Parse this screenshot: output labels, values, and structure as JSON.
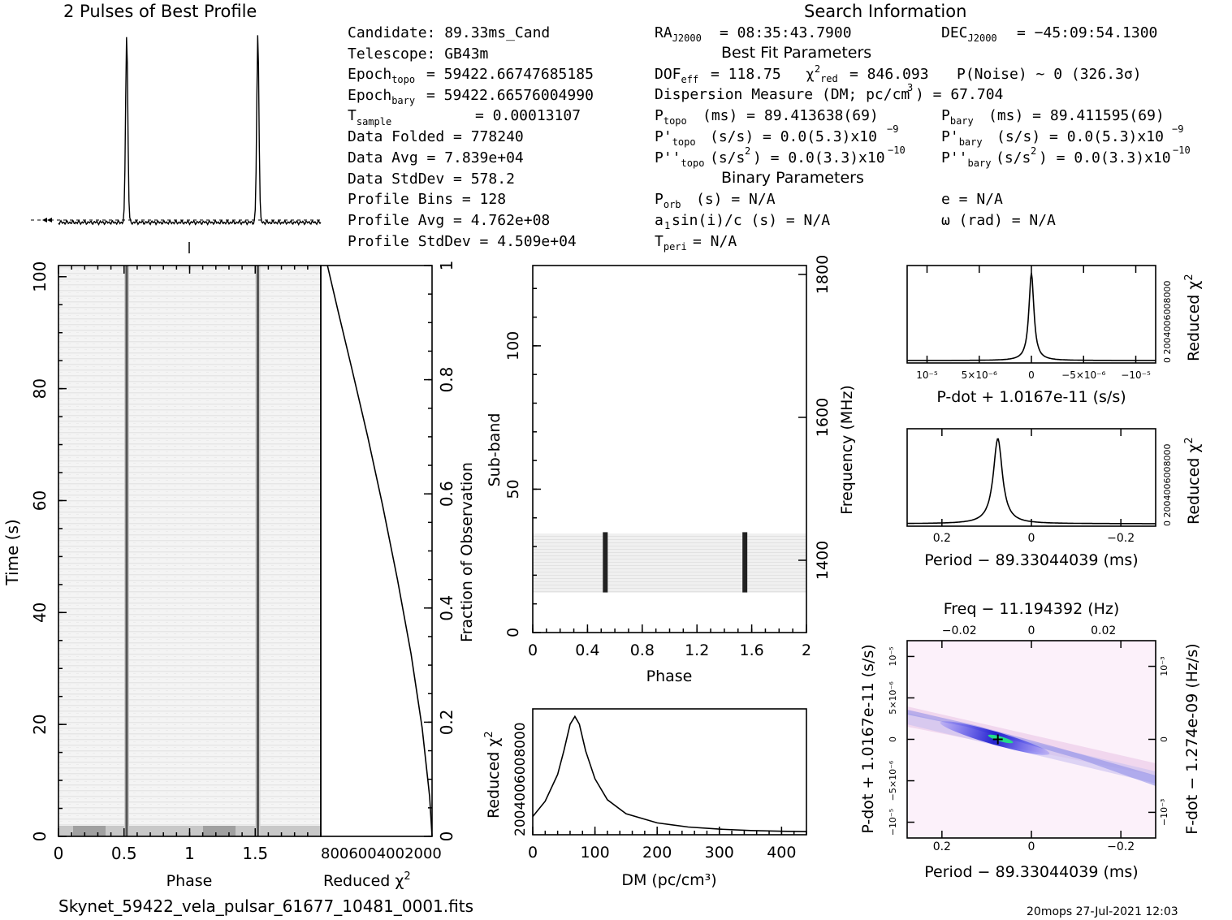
{
  "title": "2 Pulses of Best Profile",
  "search_header": "Search Information",
  "best_fit_header": "Best Fit Parameters",
  "binary_header": "Binary Parameters",
  "file_name": "Skynet_59422_vela_pulsar_61677_10481_0001.fits",
  "footer_stamp": "20mops 27-Jul-2021 12:03",
  "info": {
    "candidate": "Candidate:  89.33ms_Cand",
    "telescope": "Telescope:  GB43m",
    "epoch_topo": "= 59422.66747685185",
    "epoch_bary": "= 59422.66576004990",
    "t_sample": "=   0.00013107",
    "data_folded": "Data Folded    =   778240",
    "data_avg": "Data Avg       =   7.839e+04",
    "data_stddev": "Data StdDev    =   578.2",
    "profile_bins": "Profile Bins   =   128",
    "profile_avg": "Profile Avg    =   4.762e+08",
    "profile_stddev": "Profile StdDev =   4.509e+04",
    "ra": "= 08:35:43.7900",
    "dec": "= −45:09:54.1300",
    "dof": "= 118.75",
    "chi2": "= 846.093",
    "pnoise": "P(Noise) ~ 0    (326.3σ)",
    "dm_text": "Dispersion Measure (DM; pc/cm",
    "dm_value": ") = 67.704",
    "p_topo": "(ms) =  89.413638(69)",
    "p_bary": "(ms) =  89.411595(69)",
    "pd_topo": "(s/s) = 0.0(5.3)x10",
    "pd_topo_exp": "−9",
    "pd_bary": "(s/s) = 0.0(5.3)x10",
    "pd_bary_exp": "−9",
    "pdd_topo": "(s/s",
    "pdd_topo_tail": ") = 0.0(3.3)x10",
    "pdd_topo_exp": "−10",
    "pdd_bary": "(s/s",
    "pdd_bary_tail": ") = 0.0(3.3)x10",
    "pdd_bary_exp": "−10",
    "p_orb": "(s) = N/A",
    "a1sini": "a",
    "a1sini_tail": "sin(i)/c (s) = N/A",
    "t_peri": "= N/A",
    "ecc": "e = N/A",
    "omega": "ω (rad) = N/A"
  },
  "chart_data": [
    {
      "type": "line",
      "name": "profile",
      "title": "2 Pulses of Best Profile",
      "xlim": [
        0,
        2
      ],
      "pulse_phase": [
        0.52,
        1.52
      ],
      "pulse_relative_height": 1.0,
      "baseline_relative_height": 0.0
    },
    {
      "type": "heatmap",
      "name": "time-phase",
      "xlabel": "Phase",
      "ylabel": "Time (s)",
      "xlim": [
        0,
        2
      ],
      "ylim": [
        0,
        102
      ],
      "x_ticks": [
        "0",
        "0.5",
        "1",
        "1.5"
      ],
      "y_ticks": [
        "0",
        "20",
        "40",
        "60",
        "80",
        "100"
      ],
      "pulse_phase": [
        0.52,
        1.52
      ]
    },
    {
      "type": "line",
      "name": "chi2-vs-fraction",
      "xlabel": "Reduced χ²",
      "ylabel": "Fraction of Observation",
      "ylim": [
        0,
        1
      ],
      "y_ticks": [
        "0",
        "0.2",
        "0.4",
        "0.6",
        "0.8",
        "1"
      ],
      "x_tick_text": "8006004002000",
      "x": [
        846,
        760,
        650,
        520,
        400,
        280,
        170,
        80,
        20,
        0
      ],
      "y": [
        1.0,
        0.92,
        0.82,
        0.7,
        0.58,
        0.45,
        0.32,
        0.19,
        0.07,
        0.0
      ]
    },
    {
      "type": "heatmap",
      "name": "subband-phase",
      "xlabel": "Phase",
      "ylabel": "Sub-band",
      "ylabel_right": "Frequency (MHz)",
      "xlim": [
        0,
        2
      ],
      "ylim": [
        0,
        128
      ],
      "x_ticks": [
        "0",
        "0.4",
        "0.8",
        "1.2",
        "1.6",
        "2"
      ],
      "y_ticks": [
        "0",
        "50",
        "100"
      ],
      "y_ticks_right": [
        "1400",
        "1600",
        "1800"
      ],
      "occupied_subbands": [
        14,
        35
      ],
      "pulse_phase": [
        0.53,
        1.55
      ]
    },
    {
      "type": "line",
      "name": "dm-curve",
      "xlabel": "DM (pc/cm³)",
      "ylabel": "Reduced χ²",
      "xlim": [
        0,
        440
      ],
      "ylim": [
        0,
        900
      ],
      "x_ticks": [
        "0",
        "100",
        "200",
        "300",
        "400"
      ],
      "y_tick_text": "2004006008000",
      "peak_dm": 67.704,
      "x": [
        0,
        20,
        40,
        50,
        60,
        67.7,
        75,
        85,
        100,
        120,
        150,
        200,
        250,
        300,
        350,
        400,
        440
      ],
      "y": [
        130,
        240,
        430,
        600,
        790,
        846,
        790,
        600,
        400,
        250,
        150,
        85,
        55,
        40,
        30,
        25,
        22
      ]
    },
    {
      "type": "line",
      "name": "pdot-curve",
      "xlabel": "P-dot + 1.0167e-11 (s/s)",
      "ylabel": "Reduced χ²",
      "x_ticks": [
        "10⁻⁵",
        "5×10⁻⁶",
        "0",
        "−5×10⁻⁶",
        "−10⁻⁵"
      ],
      "y_tick_text": "0 2004006008000",
      "peak_x": 0,
      "peak_y": 846
    },
    {
      "type": "line",
      "name": "period-curve",
      "xlabel": "Period − 89.33044039 (ms)",
      "ylabel": "Reduced χ²",
      "x_ticks": [
        "0.2",
        "0",
        "−0.2"
      ],
      "y_tick_text": "0 2004006008000",
      "peak_x": 0.083,
      "peak_y": 846
    },
    {
      "type": "heatmap",
      "name": "p-pdot-plane",
      "title": "Freq − 11.194392 (Hz)",
      "top_ticks": [
        "−0.02",
        "0",
        "0.02"
      ],
      "xlabel": "Period − 89.33044039 (ms)",
      "ylabel": "P-dot + 1.0167e-11 (s/s)",
      "ylabel_right": "F-dot − 1.274e-09 (Hz/s)",
      "x_ticks": [
        "0.2",
        "0",
        "−0.2"
      ],
      "y_ticks_left": [
        "10⁻⁵",
        "5×10⁻⁶",
        "0",
        "−5×10⁻⁶",
        "−10⁻⁵"
      ],
      "y_ticks_right": [
        "−10⁻³",
        "0",
        "10⁻³"
      ],
      "best_period": 0.083,
      "best_pdot": 0
    }
  ]
}
